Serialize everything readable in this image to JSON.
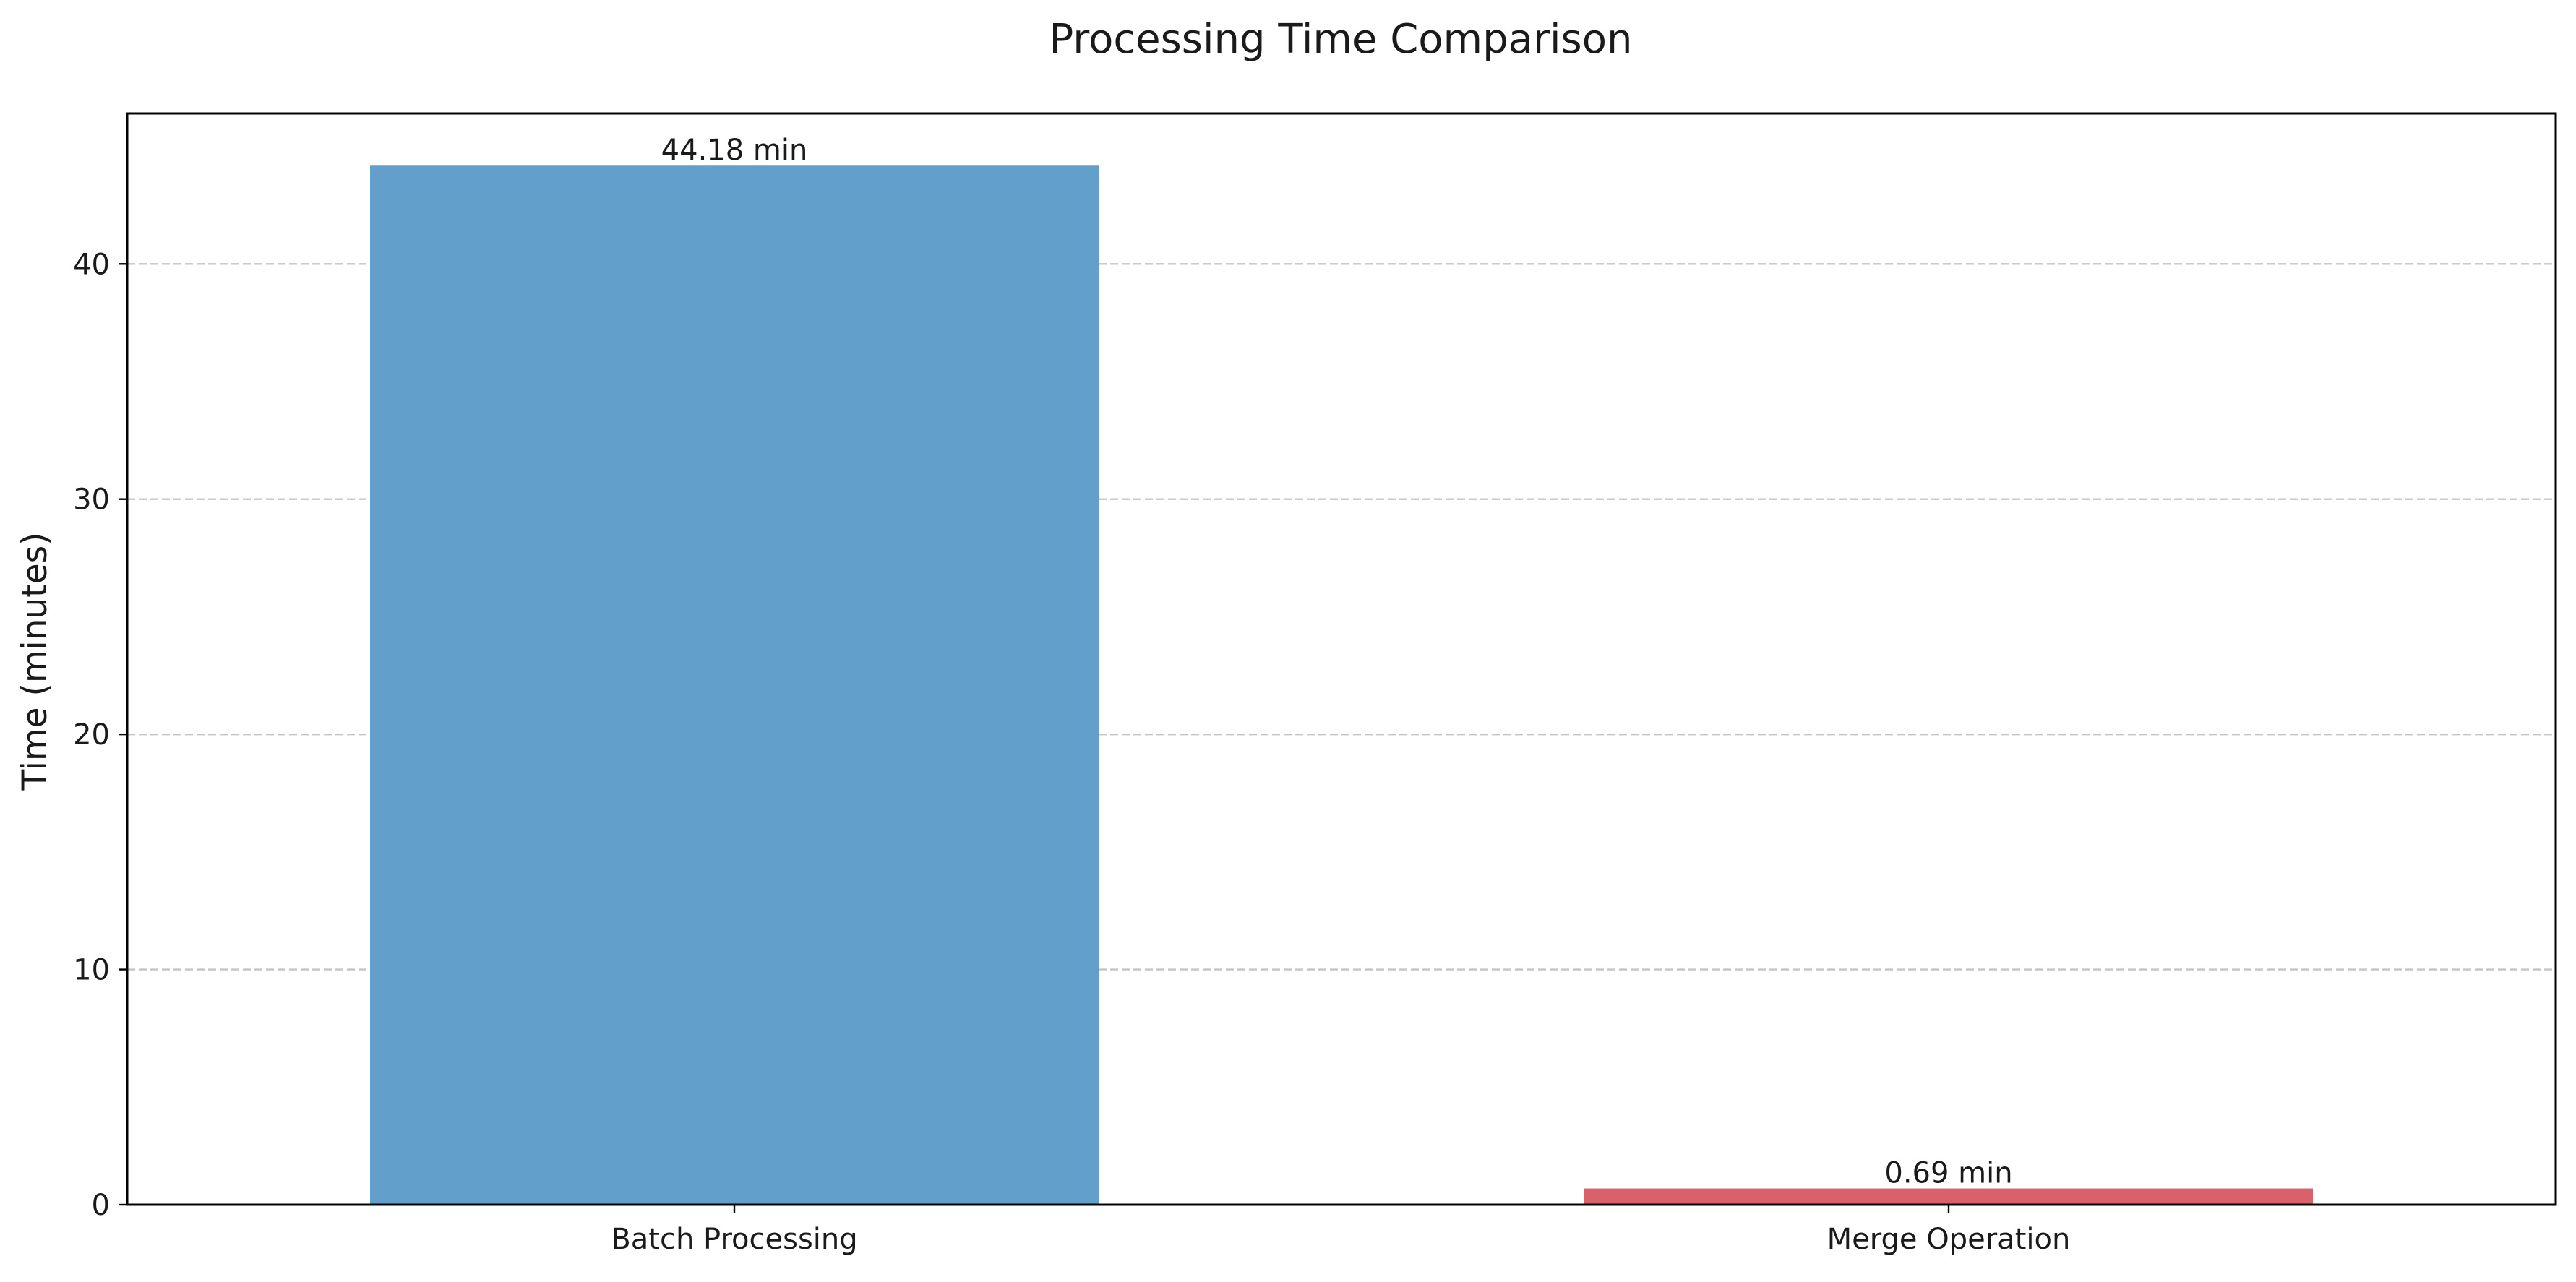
{
  "chart_data": {
    "type": "bar",
    "title": "Processing Time Comparison",
    "xlabel": "",
    "ylabel": "Time (minutes)",
    "categories": [
      "Batch Processing",
      "Merge Operation"
    ],
    "values": [
      44.18,
      0.69
    ],
    "data_labels": [
      "44.18 min",
      "0.69 min"
    ],
    "colors": [
      "#629fca",
      "#d9626a"
    ],
    "ylim": [
      0,
      46.4
    ],
    "yticks": [
      0,
      10,
      20,
      30,
      40
    ],
    "grid": "y-dashed",
    "legend": "none"
  }
}
